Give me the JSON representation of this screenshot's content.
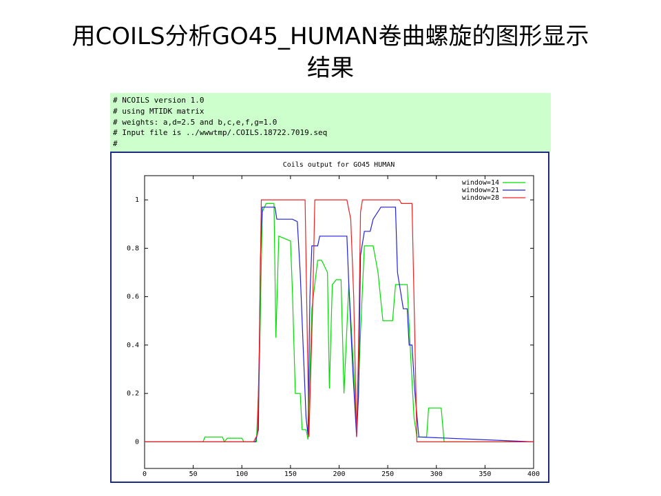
{
  "title": "用COILS分析GO45_HUMAN卷曲螺旋的图形显示结果",
  "header_lines": [
    "# NCOILS version 1.0",
    "# using MTIDK matrix",
    "# weights: a,d=2.5 and b,c,e,f,g=1.0",
    "# Input file is ../wwwtmp/.COILS.18722.7019.seq",
    "#"
  ],
  "chart_data": {
    "type": "line",
    "title": "Coils output for GO45 HUMAN",
    "xlim": [
      0,
      400
    ],
    "xticks": [
      0,
      50,
      100,
      150,
      200,
      250,
      300,
      350,
      400
    ],
    "ylim": [
      -0.11,
      1.1
    ],
    "yticks": [
      0,
      0.2,
      0.4,
      0.6,
      0.8,
      1
    ],
    "legend": "top-right",
    "series": [
      {
        "name": "window=14",
        "color": "#00dd00",
        "x": [
          0,
          60,
          62,
          80,
          82,
          85,
          100,
          102,
          115,
          118,
          121,
          125,
          133,
          135,
          138,
          150,
          152,
          155,
          160,
          162,
          166,
          168,
          172,
          178,
          182,
          188,
          190,
          193,
          197,
          202,
          205,
          210,
          215,
          218,
          222,
          226,
          235,
          240,
          245,
          255,
          258,
          270,
          273,
          277,
          280,
          290,
          292,
          305,
          308,
          400
        ],
        "values": [
          0,
          0,
          0.02,
          0.02,
          0,
          0.015,
          0.015,
          0,
          0,
          0.3,
          0.95,
          0.985,
          0.985,
          0.43,
          0.85,
          0.83,
          0.62,
          0.2,
          0.2,
          0.05,
          0.05,
          0.01,
          0.55,
          0.75,
          0.75,
          0.7,
          0.22,
          0.65,
          0.67,
          0.67,
          0.2,
          0.65,
          0.3,
          0.03,
          0.45,
          0.81,
          0.81,
          0.7,
          0.5,
          0.5,
          0.65,
          0.65,
          0.4,
          0.1,
          0.02,
          0.02,
          0.14,
          0.14,
          0,
          0
        ]
      },
      {
        "name": "window=21",
        "color": "#2020dd",
        "x": [
          0,
          114,
          117,
          119,
          121,
          134,
          136,
          152,
          157,
          160,
          163,
          166,
          168,
          170,
          172,
          178,
          180,
          188,
          208,
          210,
          214,
          218,
          220,
          222,
          226,
          232,
          235,
          243,
          258,
          260,
          266,
          270,
          272,
          275,
          278,
          282,
          400
        ],
        "values": [
          0,
          0,
          0.05,
          0.75,
          0.97,
          0.97,
          0.92,
          0.92,
          0.91,
          0.7,
          0.4,
          0.1,
          0.03,
          0.6,
          0.81,
          0.81,
          0.85,
          0.85,
          0.85,
          0.65,
          0.3,
          0.02,
          0.2,
          0.77,
          0.87,
          0.87,
          0.92,
          0.97,
          0.97,
          0.7,
          0.55,
          0.55,
          0.4,
          0.4,
          0.2,
          0.02,
          0
        ]
      },
      {
        "name": "window=28",
        "color": "#ee2020",
        "x": [
          0,
          112,
          116,
          118,
          120,
          165,
          167,
          169,
          173,
          175,
          208,
          212,
          215,
          218,
          220,
          222,
          224,
          262,
          264,
          275,
          278,
          280,
          400
        ],
        "values": [
          0,
          0,
          0.03,
          0.4,
          1,
          1,
          0.5,
          0.02,
          0.6,
          1,
          1,
          0.92,
          0.6,
          0.02,
          0.4,
          0.95,
          1,
          1,
          0.985,
          0.985,
          0.4,
          0,
          0
        ]
      }
    ]
  }
}
